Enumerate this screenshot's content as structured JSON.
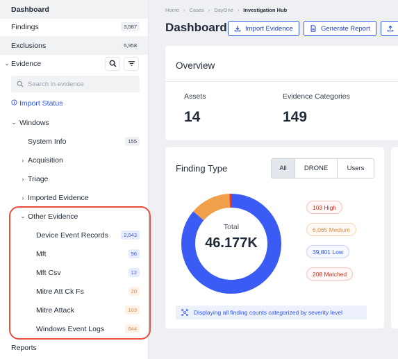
{
  "sidebar": {
    "dashboard_label": "Dashboard",
    "findings": {
      "label": "Findings",
      "count": "3,587"
    },
    "exclusions": {
      "label": "Exclusions",
      "count": "5,958"
    },
    "evidence_label": "Evidence",
    "search_placeholder": "Search in evidence",
    "import_status": "Import Status",
    "windows_label": "Windows",
    "system_info": {
      "label": "System Info",
      "count": "155"
    },
    "acquisition": "Acquisition",
    "triage": "Triage",
    "imported_evidence": "Imported Evidence",
    "other_evidence": {
      "label": "Other Evidence",
      "items": [
        {
          "label": "Device Event Records",
          "count": "2,643"
        },
        {
          "label": "Mft",
          "count": "96"
        },
        {
          "label": "Mft Csv",
          "count": "12"
        },
        {
          "label": "Mitre Att Ck Fs",
          "count": "20"
        },
        {
          "label": "Mitre Attack",
          "count": "103"
        },
        {
          "label": "Windows Event Logs",
          "count": "644"
        }
      ]
    },
    "reports_label": "Reports"
  },
  "breadcrumb": [
    "Home",
    "Cases",
    "DayOne",
    "Investigation Hub"
  ],
  "header": {
    "title": "Dashboard",
    "import_evidence": "Import Evidence",
    "generate_report": "Generate Report"
  },
  "overview": {
    "title": "Overview",
    "assets_label": "Assets",
    "assets_value": "14",
    "categories_label": "Evidence Categories",
    "categories_value": "149"
  },
  "finding_type": {
    "title": "Finding Type",
    "tabs": [
      "All",
      "DRONE",
      "Users"
    ],
    "active_tab": "All",
    "total_label": "Total",
    "total_value": "46.177K",
    "severity": [
      {
        "label": "103 High",
        "value": 103,
        "color": "#e8503a"
      },
      {
        "label": "6,065 Medium",
        "value": 6065,
        "color": "#f0a04b"
      },
      {
        "label": "39,801 Low",
        "value": 39801,
        "color": "#3b5bf5"
      },
      {
        "label": "208 Matched",
        "value": 208,
        "color": "#d93a2b"
      }
    ],
    "note": "Displaying all finding counts categorized by severity level"
  }
}
